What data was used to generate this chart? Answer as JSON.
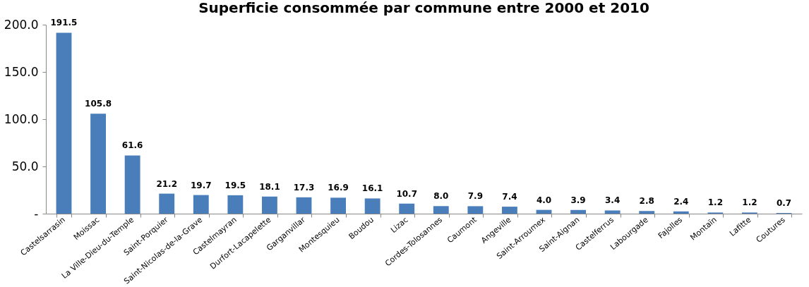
{
  "chart_data": {
    "type": "bar",
    "title": "Superficie consommée par commune entre 2000 et 2010",
    "categories": [
      "Castelsarrasin",
      "Moissac",
      "La Ville-Dieu-du-Temple",
      "Saint-Porquier",
      "Saint-Nicolas-de-la-Grave",
      "Castelmayran",
      "Durfort-Lacapelette",
      "Garganvillar",
      "Montesquieu",
      "Boudou",
      "Lizac",
      "Cordes-Tolosannes",
      "Caumont",
      "Angeville",
      "Saint-Arroumex",
      "Saint-Aignan",
      "Castelferrus",
      "Labourgade",
      "Fajolles",
      "Montaïn",
      "Lafitte",
      "Coutures"
    ],
    "values": [
      191.5,
      105.8,
      61.6,
      21.2,
      19.7,
      19.5,
      18.1,
      17.3,
      16.9,
      16.1,
      10.7,
      8.0,
      7.9,
      7.4,
      4.0,
      3.9,
      3.4,
      2.8,
      2.4,
      1.2,
      1.2,
      0.7
    ],
    "value_labels": [
      "191.5",
      "105.8",
      "61.6",
      "21.2",
      "19.7",
      "19.5",
      "18.1",
      "17.3",
      "16.9",
      "16.1",
      "10.7",
      "8.0",
      "7.9",
      "7.4",
      "4.0",
      "3.9",
      "3.4",
      "2.8",
      "2.4",
      "1.2",
      "1.2",
      "0.7"
    ],
    "color": "#4a7ebb",
    "ylim": [
      0,
      200
    ],
    "yticks": [
      {
        "value": 0,
        "label": "-"
      },
      {
        "value": 50,
        "label": "50.0"
      },
      {
        "value": 100,
        "label": "100.0"
      },
      {
        "value": 150,
        "label": "150.0"
      },
      {
        "value": 200,
        "label": "200.0"
      }
    ],
    "grid": false
  }
}
